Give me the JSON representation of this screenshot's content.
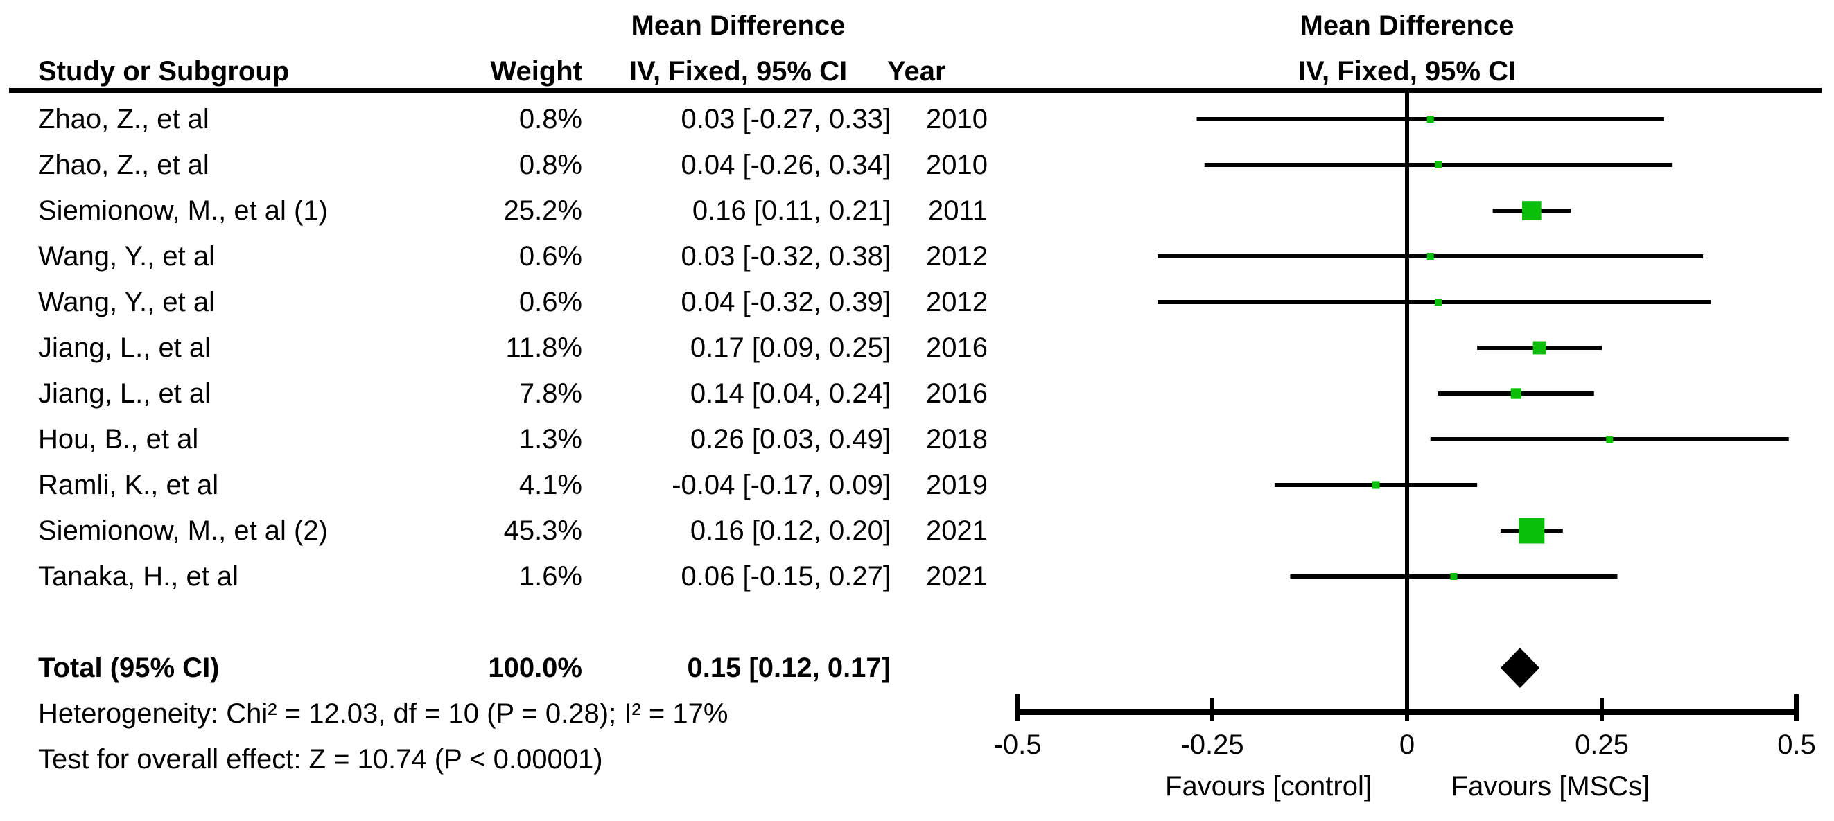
{
  "chart_data": {
    "type": "forest",
    "effect_label": "Mean Difference",
    "columns": {
      "study": "Study or Subgroup",
      "weight": "Weight",
      "method": "IV, Fixed, 95% CI",
      "year": "Year"
    },
    "studies": [
      {
        "name": "Zhao, Z., et al",
        "weight_text": "0.8%",
        "weight_pct": 0.8,
        "est": 0.03,
        "lo": -0.27,
        "hi": 0.33,
        "ci_text": "0.03 [-0.27, 0.33]",
        "year": "2010"
      },
      {
        "name": "Zhao, Z., et al",
        "weight_text": "0.8%",
        "weight_pct": 0.8,
        "est": 0.04,
        "lo": -0.26,
        "hi": 0.34,
        "ci_text": "0.04 [-0.26, 0.34]",
        "year": "2010"
      },
      {
        "name": "Siemionow, M., et al (1)",
        "weight_text": "25.2%",
        "weight_pct": 25.2,
        "est": 0.16,
        "lo": 0.11,
        "hi": 0.21,
        "ci_text": "0.16 [0.11, 0.21]",
        "year": "2011"
      },
      {
        "name": "Wang, Y., et al",
        "weight_text": "0.6%",
        "weight_pct": 0.6,
        "est": 0.03,
        "lo": -0.32,
        "hi": 0.38,
        "ci_text": "0.03 [-0.32, 0.38]",
        "year": "2012"
      },
      {
        "name": "Wang, Y., et al",
        "weight_text": "0.6%",
        "weight_pct": 0.6,
        "est": 0.04,
        "lo": -0.32,
        "hi": 0.39,
        "ci_text": "0.04 [-0.32, 0.39]",
        "year": "2012"
      },
      {
        "name": "Jiang, L., et al",
        "weight_text": "11.8%",
        "weight_pct": 11.8,
        "est": 0.17,
        "lo": 0.09,
        "hi": 0.25,
        "ci_text": "0.17 [0.09, 0.25]",
        "year": "2016"
      },
      {
        "name": "Jiang, L., et al",
        "weight_text": "7.8%",
        "weight_pct": 7.8,
        "est": 0.14,
        "lo": 0.04,
        "hi": 0.24,
        "ci_text": "0.14 [0.04, 0.24]",
        "year": "2016"
      },
      {
        "name": "Hou, B., et al",
        "weight_text": "1.3%",
        "weight_pct": 1.3,
        "est": 0.26,
        "lo": 0.03,
        "hi": 0.49,
        "ci_text": "0.26 [0.03, 0.49]",
        "year": "2018"
      },
      {
        "name": "Ramli, K., et al",
        "weight_text": "4.1%",
        "weight_pct": 4.1,
        "est": -0.04,
        "lo": -0.17,
        "hi": 0.09,
        "ci_text": "-0.04 [-0.17, 0.09]",
        "year": "2019"
      },
      {
        "name": "Siemionow, M., et al (2)",
        "weight_text": "45.3%",
        "weight_pct": 45.3,
        "est": 0.16,
        "lo": 0.12,
        "hi": 0.2,
        "ci_text": "0.16 [0.12, 0.20]",
        "year": "2021"
      },
      {
        "name": "Tanaka, H., et al",
        "weight_text": "1.6%",
        "weight_pct": 1.6,
        "est": 0.06,
        "lo": -0.15,
        "hi": 0.27,
        "ci_text": "0.06 [-0.15, 0.27]",
        "year": "2021"
      }
    ],
    "total": {
      "label": "Total (95% CI)",
      "weight_text": "100.0%",
      "ci_text": "0.15 [0.12, 0.17]",
      "lo": 0.12,
      "hi": 0.17
    },
    "footer": {
      "heterogeneity": "Heterogeneity: Chi² = 12.03, df = 10 (P = 0.28); I² = 17%",
      "overall_effect": "Test for overall effect: Z = 10.74 (P < 0.00001)"
    },
    "axis": {
      "xlim": [
        -0.5,
        0.5
      ],
      "ticks": [
        -0.5,
        -0.25,
        0,
        0.25,
        0.5
      ],
      "labels": [
        "-0.5",
        "-0.25",
        "0",
        "0.25",
        "0.5"
      ],
      "favours_left": "Favours [control]",
      "favours_right": "Favours [MSCs]"
    },
    "colors": {
      "square": "#0abe0a",
      "diamond": "#000000",
      "ci_line": "#000000",
      "axis": "#000000",
      "text": "#000000"
    }
  }
}
